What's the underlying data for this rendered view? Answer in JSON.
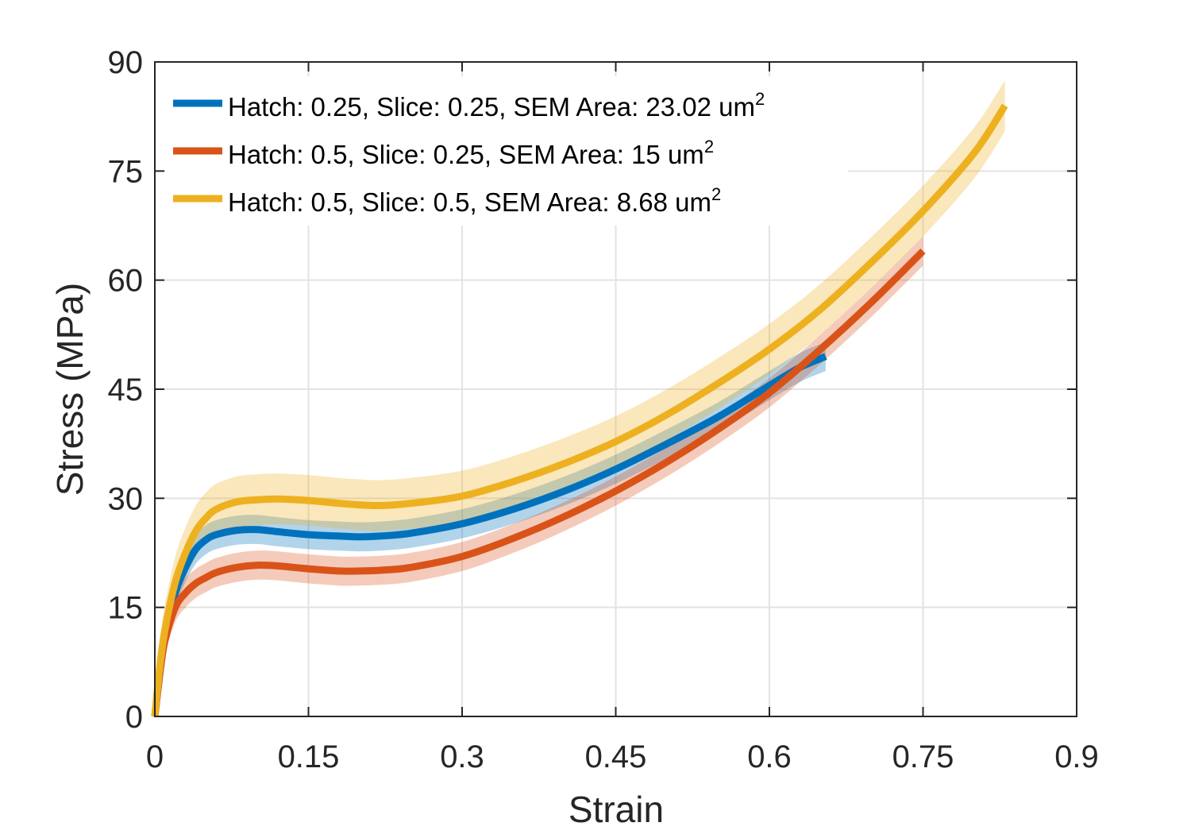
{
  "chart_data": {
    "type": "line",
    "title": "",
    "xlabel": "Strain",
    "ylabel": "Stress (MPa)",
    "xlim": [
      0,
      0.9
    ],
    "ylim": [
      0,
      90
    ],
    "xticks": [
      "0",
      "0.15",
      "0.3",
      "0.45",
      "0.6",
      "0.75",
      "0.9"
    ],
    "yticks": [
      "0",
      "15",
      "30",
      "45",
      "60",
      "75",
      "90"
    ],
    "grid": true,
    "legend_position": "top-left",
    "legend_sup": "2",
    "series": [
      {
        "name": "Hatch: 0.25, Slice: 0.25, SEM Area: 23.02 um",
        "color": "#0072BD",
        "band": 2.0,
        "x": [
          0,
          0.005,
          0.01,
          0.02,
          0.03,
          0.04,
          0.05,
          0.06,
          0.08,
          0.1,
          0.12,
          0.15,
          0.18,
          0.2,
          0.22,
          0.25,
          0.3,
          0.35,
          0.4,
          0.45,
          0.5,
          0.55,
          0.6,
          0.63,
          0.655
        ],
        "y": [
          0,
          6,
          11,
          17,
          20.5,
          23,
          24.3,
          25,
          25.6,
          25.7,
          25.4,
          25,
          24.8,
          24.7,
          24.8,
          25.2,
          26.5,
          28.5,
          31,
          34,
          37.5,
          41.2,
          45.5,
          48,
          49.5
        ]
      },
      {
        "name": "Hatch: 0.5, Slice: 0.25, SEM Area: 15 um",
        "color": "#D95319",
        "band": 2.0,
        "x": [
          0,
          0.005,
          0.01,
          0.02,
          0.03,
          0.04,
          0.05,
          0.06,
          0.08,
          0.1,
          0.12,
          0.15,
          0.18,
          0.2,
          0.22,
          0.25,
          0.3,
          0.35,
          0.4,
          0.45,
          0.5,
          0.55,
          0.6,
          0.65,
          0.7,
          0.75
        ],
        "y": [
          0,
          6,
          10.5,
          15,
          17,
          18.3,
          19.1,
          19.8,
          20.5,
          20.8,
          20.7,
          20.3,
          20,
          20,
          20.1,
          20.5,
          22,
          24.5,
          27.5,
          31,
          35,
          39.5,
          44.5,
          50.5,
          57,
          64
        ]
      },
      {
        "name": "Hatch: 0.5, Slice: 0.5, SEM Area: 8.68 um",
        "color": "#EDB120",
        "band": 3.5,
        "x": [
          0,
          0.005,
          0.01,
          0.02,
          0.03,
          0.04,
          0.05,
          0.06,
          0.08,
          0.1,
          0.12,
          0.15,
          0.18,
          0.2,
          0.22,
          0.25,
          0.3,
          0.35,
          0.4,
          0.45,
          0.5,
          0.55,
          0.6,
          0.65,
          0.7,
          0.75,
          0.8,
          0.83
        ],
        "y": [
          0,
          7,
          12,
          18.5,
          22.5,
          25.5,
          27.3,
          28.5,
          29.5,
          29.8,
          29.9,
          29.7,
          29.3,
          29.1,
          29,
          29.3,
          30.3,
          32.3,
          34.8,
          37.8,
          41.5,
          45.8,
          50.5,
          56,
          62.5,
          69.5,
          77.5,
          84
        ]
      }
    ]
  }
}
